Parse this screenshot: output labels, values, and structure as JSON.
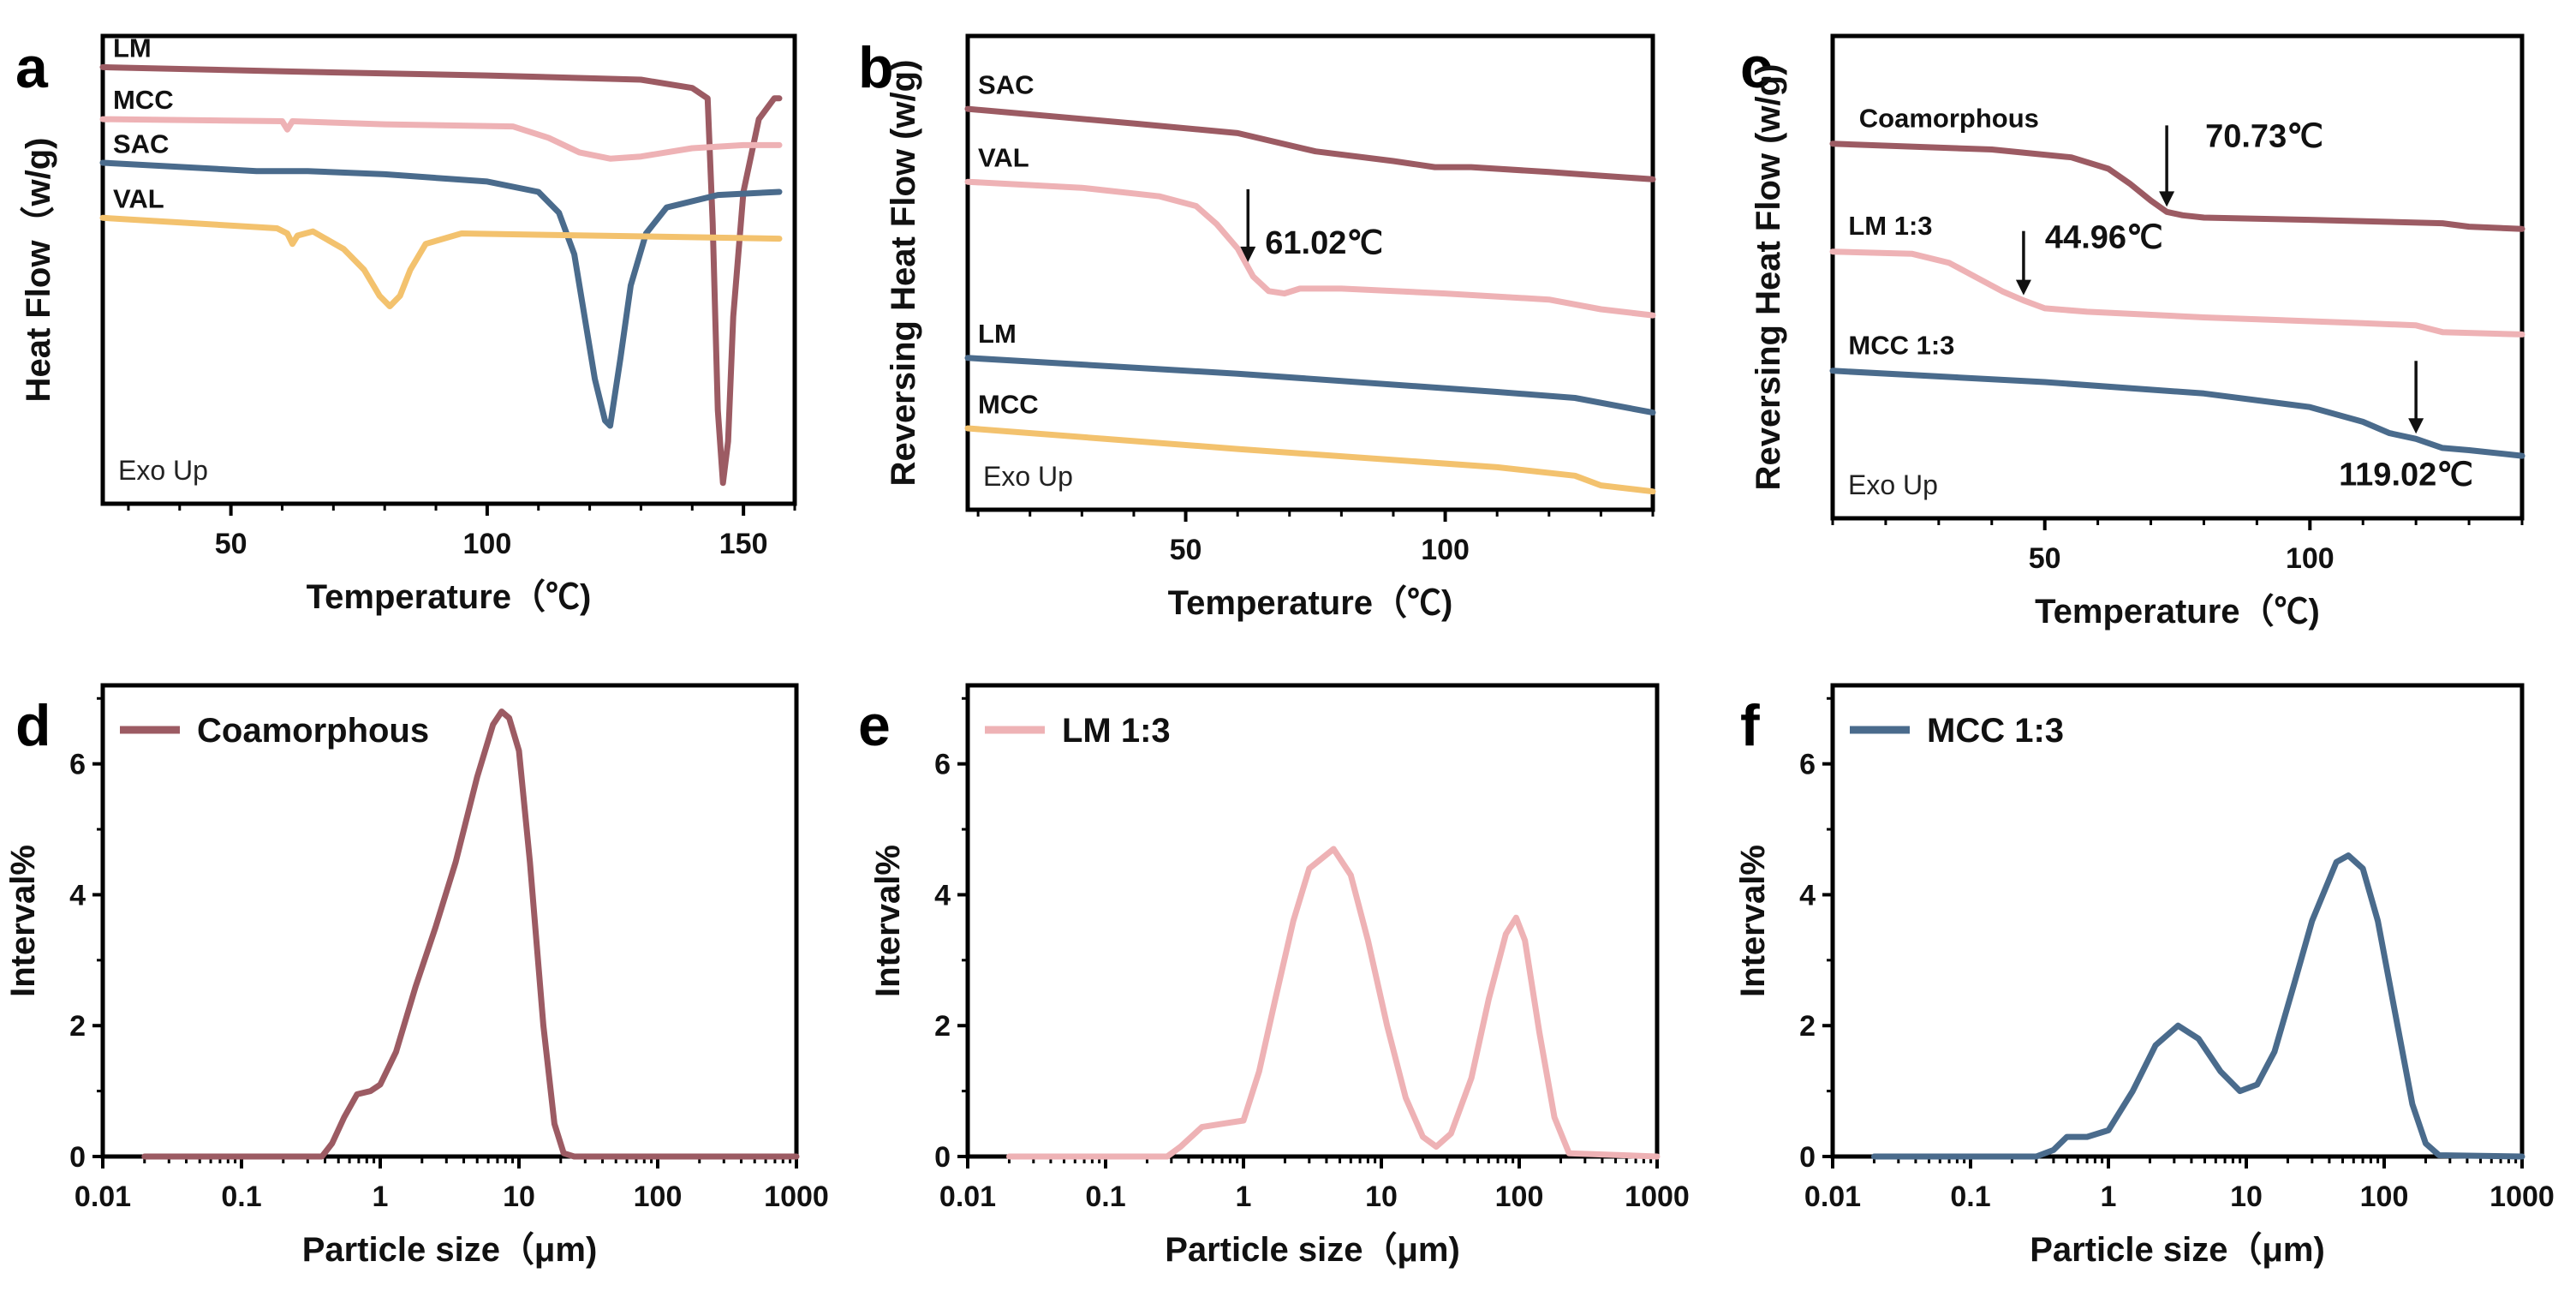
{
  "colors": {
    "LM": "#9c5b63",
    "MCC": "#eeb2b5",
    "SAC": "#4a6b8c",
    "VAL": "#f3c26e"
  },
  "chart_data": [
    {
      "panel": "a",
      "type": "line",
      "xlabel": "Temperature（℃)",
      "ylabel": "Heat Flow（w/g)",
      "xlim": [
        25,
        160
      ],
      "ylim": [
        -4.2,
        0.3
      ],
      "xticks": [
        "50",
        "100",
        "150"
      ],
      "note": "Exo Up",
      "series": [
        {
          "name": "LM",
          "color": "#9c5b63",
          "x": [
            25,
            60,
            100,
            130,
            140,
            143,
            144,
            145,
            146,
            147,
            148,
            150,
            153,
            156,
            157
          ],
          "y": [
            0,
            -0.04,
            -0.08,
            -0.12,
            -0.2,
            -0.3,
            -1.5,
            -3.3,
            -4.0,
            -3.6,
            -2.4,
            -1.2,
            -0.5,
            -0.3,
            -0.3
          ]
        },
        {
          "name": "MCC",
          "color": "#eeb2b5",
          "x": [
            25,
            60,
            61,
            62,
            80,
            105,
            112,
            118,
            124,
            130,
            140,
            150,
            157
          ],
          "y": [
            -0.5,
            -0.52,
            -0.6,
            -0.52,
            -0.55,
            -0.57,
            -0.68,
            -0.82,
            -0.88,
            -0.86,
            -0.78,
            -0.75,
            -0.75
          ]
        },
        {
          "name": "SAC",
          "color": "#4a6b8c",
          "x": [
            25,
            55,
            65,
            80,
            100,
            110,
            114,
            117,
            119,
            121,
            123,
            124,
            126,
            128,
            131,
            135,
            145,
            157
          ],
          "y": [
            -0.92,
            -1.0,
            -1.0,
            -1.03,
            -1.1,
            -1.2,
            -1.4,
            -1.8,
            -2.4,
            -3.0,
            -3.4,
            -3.45,
            -2.8,
            -2.1,
            -1.6,
            -1.35,
            -1.23,
            -1.2
          ]
        },
        {
          "name": "VAL",
          "color": "#f3c26e",
          "x": [
            25,
            59,
            61,
            62,
            63,
            66,
            72,
            76,
            79,
            81,
            83,
            85,
            88,
            95,
            157
          ],
          "y": [
            -1.45,
            -1.55,
            -1.6,
            -1.7,
            -1.62,
            -1.58,
            -1.75,
            -1.95,
            -2.2,
            -2.3,
            -2.2,
            -1.95,
            -1.7,
            -1.6,
            -1.65
          ]
        }
      ]
    },
    {
      "panel": "b",
      "type": "line",
      "xlabel": "Temperature（℃)",
      "ylabel": "Reversing Heat Flow (w/g)",
      "xlim": [
        8,
        140
      ],
      "ylim": [
        -3.3,
        0.6
      ],
      "xticks": [
        "50",
        "100"
      ],
      "note": "Exo Up",
      "annotations": [
        {
          "text": "61.02℃",
          "x": 62,
          "series": "VAL"
        }
      ],
      "series": [
        {
          "name": "SAC",
          "color": "#9c5b63",
          "x": [
            8,
            40,
            60,
            75,
            90,
            98,
            105,
            120,
            130,
            140
          ],
          "y": [
            0,
            -0.12,
            -0.2,
            -0.35,
            -0.43,
            -0.48,
            -0.48,
            -0.52,
            -0.55,
            -0.58
          ]
        },
        {
          "name": "VAL",
          "color": "#eeb2b5",
          "x": [
            8,
            30,
            45,
            52,
            56,
            60,
            63,
            66,
            69,
            72,
            80,
            100,
            120,
            130,
            140
          ],
          "y": [
            -0.6,
            -0.65,
            -0.72,
            -0.8,
            -0.95,
            -1.15,
            -1.38,
            -1.5,
            -1.52,
            -1.48,
            -1.48,
            -1.52,
            -1.57,
            -1.65,
            -1.7
          ]
        },
        {
          "name": "LM",
          "color": "#4a6b8c",
          "x": [
            8,
            60,
            110,
            125,
            140
          ],
          "y": [
            -2.05,
            -2.18,
            -2.33,
            -2.38,
            -2.5
          ]
        },
        {
          "name": "MCC",
          "color": "#f3c26e",
          "x": [
            8,
            60,
            110,
            125,
            130,
            140
          ],
          "y": [
            -2.63,
            -2.8,
            -2.95,
            -3.02,
            -3.1,
            -3.15
          ]
        }
      ]
    },
    {
      "panel": "c",
      "type": "line",
      "xlabel": "Temperature（℃)",
      "ylabel": "Reversing Heat Flow (w/g)",
      "xlim": [
        10,
        140
      ],
      "ylim": [
        -3.3,
        0.95
      ],
      "xticks": [
        "50",
        "100"
      ],
      "note": "Exo Up",
      "annotations": [
        {
          "text": "70.73℃",
          "x": 73,
          "series": "Coamorphous"
        },
        {
          "text": "44.96℃",
          "x": 46,
          "series": "LM 1:3"
        },
        {
          "text": "119.02℃",
          "x": 120,
          "series": "MCC 1:3"
        }
      ],
      "series": [
        {
          "name": "Coamorphous",
          "color": "#9c5b63",
          "x": [
            10,
            40,
            55,
            62,
            66,
            70,
            73,
            76,
            80,
            100,
            125,
            130,
            140
          ],
          "y": [
            0,
            -0.05,
            -0.12,
            -0.22,
            -0.35,
            -0.5,
            -0.6,
            -0.63,
            -0.65,
            -0.67,
            -0.7,
            -0.73,
            -0.75
          ]
        },
        {
          "name": "LM 1:3",
          "color": "#eeb2b5",
          "x": [
            10,
            25,
            32,
            38,
            42,
            46,
            50,
            58,
            80,
            110,
            120,
            125,
            140
          ],
          "y": [
            -0.95,
            -0.97,
            -1.05,
            -1.2,
            -1.3,
            -1.38,
            -1.45,
            -1.48,
            -1.53,
            -1.58,
            -1.6,
            -1.66,
            -1.68
          ]
        },
        {
          "name": "MCC 1:3",
          "color": "#4a6b8c",
          "x": [
            10,
            50,
            80,
            100,
            110,
            115,
            120,
            125,
            130,
            140
          ],
          "y": [
            -2.0,
            -2.1,
            -2.2,
            -2.32,
            -2.45,
            -2.55,
            -2.6,
            -2.68,
            -2.7,
            -2.75
          ]
        }
      ]
    },
    {
      "panel": "d",
      "type": "line",
      "xscale": "log",
      "xlabel": "Particle size（μm)",
      "ylabel": "Interval%",
      "xlim": [
        0.01,
        1000
      ],
      "ylim": [
        0,
        7.2
      ],
      "xticks": [
        "0.01",
        "0.1",
        "1",
        "10",
        "100",
        "1000"
      ],
      "yticks": [
        "0",
        "2",
        "4",
        "6"
      ],
      "series": [
        {
          "name": "Coamorphous",
          "color": "#9c5b63",
          "x": [
            0.02,
            0.38,
            0.45,
            0.55,
            0.68,
            0.85,
            1.0,
            1.3,
            1.8,
            2.5,
            3.5,
            5,
            6.5,
            7.5,
            8.5,
            10,
            12,
            15,
            18,
            21,
            25,
            1000
          ],
          "y": [
            0,
            0,
            0.2,
            0.6,
            0.95,
            1.0,
            1.1,
            1.6,
            2.6,
            3.5,
            4.5,
            5.8,
            6.6,
            6.8,
            6.7,
            6.2,
            4.5,
            2.0,
            0.5,
            0.05,
            0,
            0
          ]
        }
      ]
    },
    {
      "panel": "e",
      "type": "line",
      "xscale": "log",
      "xlabel": "Particle size（μm)",
      "ylabel": "Interval%",
      "xlim": [
        0.01,
        1000
      ],
      "ylim": [
        0,
        7.2
      ],
      "xticks": [
        "0.01",
        "0.1",
        "1",
        "10",
        "100",
        "1000"
      ],
      "yticks": [
        "0",
        "2",
        "4",
        "6"
      ],
      "series": [
        {
          "name": "LM 1:3",
          "color": "#eeb2b5",
          "x": [
            0.02,
            0.28,
            0.35,
            0.5,
            0.7,
            1.0,
            1.3,
            1.7,
            2.3,
            3.0,
            4.5,
            6,
            8,
            11,
            15,
            20,
            25,
            32,
            45,
            60,
            80,
            95,
            110,
            140,
            180,
            230,
            1000
          ],
          "y": [
            0,
            0,
            0.15,
            0.45,
            0.5,
            0.55,
            1.3,
            2.4,
            3.6,
            4.4,
            4.7,
            4.3,
            3.3,
            2.0,
            0.9,
            0.3,
            0.15,
            0.35,
            1.2,
            2.4,
            3.4,
            3.65,
            3.3,
            1.9,
            0.6,
            0.05,
            0
          ]
        }
      ]
    },
    {
      "panel": "f",
      "type": "line",
      "xscale": "log",
      "xlabel": "Particle size（μm)",
      "ylabel": "Interval%",
      "xlim": [
        0.01,
        1000
      ],
      "ylim": [
        0,
        7.2
      ],
      "xticks": [
        "0.01",
        "0.1",
        "1",
        "10",
        "100",
        "1000"
      ],
      "yticks": [
        "0",
        "2",
        "4",
        "6"
      ],
      "series": [
        {
          "name": "MCC 1:3",
          "color": "#4a6b8c",
          "x": [
            0.02,
            0.3,
            0.4,
            0.5,
            0.7,
            1.0,
            1.5,
            2.2,
            3.2,
            4.5,
            6.5,
            9,
            12,
            16,
            22,
            30,
            45,
            55,
            70,
            90,
            120,
            160,
            200,
            250,
            1000
          ],
          "y": [
            0,
            0,
            0.1,
            0.3,
            0.3,
            0.4,
            1.0,
            1.7,
            2.0,
            1.8,
            1.3,
            1.0,
            1.1,
            1.6,
            2.6,
            3.6,
            4.5,
            4.6,
            4.4,
            3.6,
            2.2,
            0.8,
            0.2,
            0.02,
            0
          ]
        }
      ]
    }
  ]
}
